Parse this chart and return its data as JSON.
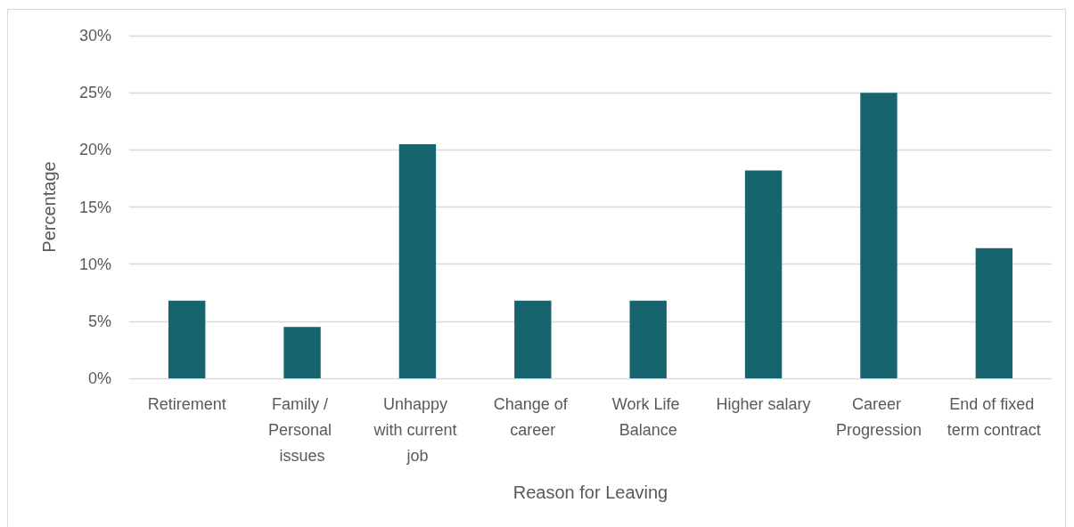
{
  "chart_data": {
    "type": "bar",
    "xlabel": "Reason for Leaving",
    "ylabel": "Percentage",
    "categories": [
      "Retirement",
      "Family / Personal issues",
      "Unhappy with current job",
      "Change of career",
      "Work Life Balance",
      "Higher salary",
      "Career Progression",
      "End of fixed term contract"
    ],
    "values": [
      6.8,
      4.5,
      20.5,
      6.8,
      6.8,
      18.2,
      25,
      11.4
    ],
    "color": "#18646e",
    "ylim": [
      0,
      30
    ],
    "yticks": [
      {
        "value": 0,
        "label": "0%"
      },
      {
        "value": 5,
        "label": "5%"
      },
      {
        "value": 10,
        "label": "10%"
      },
      {
        "value": 15,
        "label": "15%"
      },
      {
        "value": 20,
        "label": "20%"
      },
      {
        "value": 25,
        "label": "25%"
      },
      {
        "value": 30,
        "label": "30%"
      }
    ],
    "grid": "y"
  }
}
